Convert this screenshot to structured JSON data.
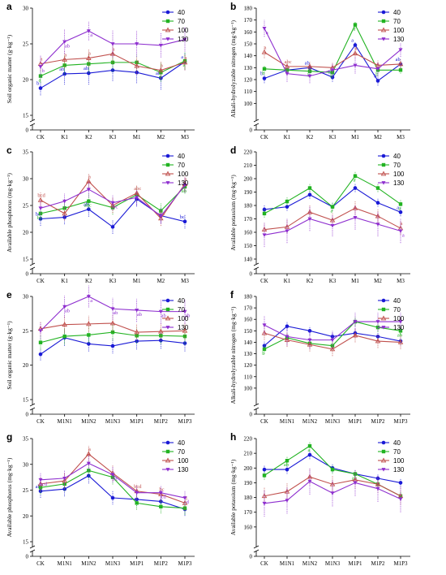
{
  "colors": {
    "40": "#1a1ad6",
    "70": "#22b322",
    "100": "#c0504d",
    "130": "#8e2fcf"
  },
  "chart_data": [
    {
      "panel": "a",
      "type": "line",
      "ylabel": "Soil organic matter (g·kg⁻¹)",
      "categories": [
        "CK",
        "K1",
        "K2",
        "K3",
        "M1",
        "M2",
        "M3"
      ],
      "ylim": [
        15,
        30
      ],
      "yticks": [
        15,
        20,
        25,
        30
      ],
      "axis_break": true,
      "series": [
        {
          "name": "40",
          "values": [
            18.8,
            20.8,
            20.9,
            21.3,
            21.0,
            20.2,
            22.5
          ],
          "err": [
            1.0,
            1.5,
            1.6,
            1.5,
            1.5,
            1.6,
            1.2
          ],
          "labels": [
            "b",
            "ab",
            "ab",
            "",
            "",
            "ab",
            "a"
          ]
        },
        {
          "name": "70",
          "values": [
            20.5,
            22.0,
            22.2,
            22.4,
            22.4,
            21.0,
            22.6
          ],
          "err": [
            1.0,
            1.3,
            1.3,
            1.3,
            1.2,
            1.3,
            1.2
          ],
          "labels": [
            "a",
            "",
            "",
            "",
            "",
            "a",
            "a"
          ]
        },
        {
          "name": "100",
          "values": [
            22.2,
            22.8,
            23.0,
            23.6,
            21.9,
            21.3,
            22.4
          ],
          "err": [
            1.0,
            1.2,
            1.2,
            1.4,
            1.2,
            1.2,
            1.1
          ],
          "labels": [
            "a",
            "a",
            "a",
            "a",
            "a",
            "a",
            "a"
          ]
        },
        {
          "name": "130",
          "values": [
            21.8,
            25.3,
            26.8,
            25.0,
            25.0,
            24.8,
            25.6
          ],
          "err": [
            1.6,
            1.7,
            1.3,
            1.9,
            1.8,
            1.7,
            1.7
          ],
          "labels": [
            "b",
            "ab",
            "a",
            "",
            "",
            "",
            ""
          ]
        }
      ]
    },
    {
      "panel": "b",
      "type": "line",
      "ylabel": "Alkali-hydrolyzable nitrogen (mg·kg⁻¹)",
      "categories": [
        "CK",
        "K1",
        "K2",
        "K3",
        "M1",
        "M2",
        "M3"
      ],
      "ylim": [
        90,
        180
      ],
      "yticks": [
        100,
        110,
        120,
        130,
        140,
        150,
        160,
        170,
        180
      ],
      "axis_break": true,
      "series": [
        {
          "name": "40",
          "values": [
            121,
            128,
            130,
            122,
            149,
            119,
            133
          ],
          "err": [
            4,
            3,
            3,
            4,
            3,
            4,
            3
          ],
          "labels": [
            "b",
            "",
            "ab",
            "b",
            "a",
            "b",
            "ab"
          ]
        },
        {
          "name": "70",
          "values": [
            129,
            128,
            127,
            126,
            166,
            128,
            128
          ],
          "err": [
            3,
            3,
            3,
            3,
            3,
            3,
            3
          ],
          "labels": [
            "b",
            "",
            "b",
            "b",
            "a",
            "b",
            ""
          ]
        },
        {
          "name": "100",
          "values": [
            143,
            131,
            131,
            130,
            142,
            132,
            133
          ],
          "err": [
            5,
            4,
            4,
            4,
            5,
            4,
            4
          ],
          "labels": [
            "a",
            "abc",
            "",
            "",
            "a",
            "",
            ""
          ]
        },
        {
          "name": "130",
          "values": [
            163,
            125,
            123,
            128,
            132,
            129,
            145
          ],
          "err": [
            7,
            7,
            6,
            6,
            7,
            6,
            6
          ],
          "labels": [
            "a",
            "",
            "",
            "",
            "",
            "",
            ""
          ]
        }
      ]
    },
    {
      "panel": "c",
      "type": "line",
      "ylabel": "Available phosphorus (mg·kg⁻¹)",
      "categories": [
        "CK",
        "K1",
        "K2",
        "K3",
        "M1",
        "M2",
        "M3"
      ],
      "ylim": [
        15,
        35
      ],
      "yticks": [
        15,
        20,
        25,
        30,
        35
      ],
      "axis_break": true,
      "series": [
        {
          "name": "40",
          "values": [
            22.5,
            22.8,
            24.3,
            21.0,
            26.2,
            23.1,
            22.0
          ],
          "err": [
            1.3,
            1.3,
            1.4,
            1.3,
            1.4,
            1.4,
            1.3
          ],
          "labels": [
            "bc",
            "",
            "ab",
            "",
            "",
            "",
            "bc"
          ]
        },
        {
          "name": "70",
          "values": [
            23.5,
            24.5,
            25.8,
            24.6,
            27.0,
            24.0,
            28.5
          ],
          "err": [
            1.3,
            1.3,
            1.4,
            1.3,
            1.4,
            1.4,
            1.3
          ],
          "labels": [
            "bc",
            "",
            "abc",
            "",
            "",
            "",
            "ab"
          ]
        },
        {
          "name": "100",
          "values": [
            26.0,
            23.5,
            29.5,
            25.0,
            27.3,
            22.6,
            29.0
          ],
          "err": [
            1.4,
            1.3,
            1.5,
            1.4,
            1.4,
            1.4,
            1.4
          ],
          "labels": [
            "bcd",
            "",
            "a",
            "",
            "abc",
            "abc",
            "a"
          ]
        },
        {
          "name": "130",
          "values": [
            24.5,
            25.8,
            28.0,
            25.5,
            26.5,
            23.0,
            28.8
          ],
          "err": [
            1.4,
            1.4,
            1.5,
            1.4,
            1.5,
            1.4,
            1.4
          ],
          "labels": [
            "",
            "",
            "",
            "bc",
            "",
            "",
            ""
          ]
        }
      ]
    },
    {
      "panel": "d",
      "type": "line",
      "ylabel": "Available potassium (mg·kg⁻¹)",
      "categories": [
        "CK",
        "K1",
        "K2",
        "K3",
        "M1",
        "M2",
        "M3"
      ],
      "ylim": [
        140,
        220
      ],
      "yticks": [
        140,
        150,
        160,
        170,
        180,
        190,
        200,
        210,
        220
      ],
      "axis_break": true,
      "series": [
        {
          "name": "40",
          "values": [
            177,
            179,
            188,
            179,
            193,
            182,
            175
          ],
          "err": [
            3,
            3,
            3,
            3,
            3,
            3,
            3
          ],
          "labels": [
            "",
            "",
            "",
            "",
            "",
            "",
            "a"
          ]
        },
        {
          "name": "70",
          "values": [
            174,
            183,
            193,
            179,
            202,
            193,
            181
          ],
          "err": [
            3,
            3,
            3,
            3,
            3,
            3,
            3
          ],
          "labels": [
            "",
            "",
            "",
            "a",
            "a",
            "",
            "a"
          ]
        },
        {
          "name": "100",
          "values": [
            162,
            164,
            175,
            169,
            178,
            172,
            163
          ],
          "err": [
            5,
            5,
            5,
            5,
            5,
            5,
            5
          ],
          "labels": [
            "",
            "",
            "",
            "",
            "",
            "",
            "a"
          ]
        },
        {
          "name": "130",
          "values": [
            158,
            161,
            170,
            165,
            171,
            166,
            161
          ],
          "err": [
            9,
            9,
            9,
            8,
            9,
            9,
            9
          ],
          "labels": [
            "",
            "",
            "",
            "",
            "",
            "",
            "a"
          ]
        }
      ]
    },
    {
      "panel": "e",
      "type": "line",
      "ylabel": "Soil organic matter (g·kg⁻¹)",
      "categories": [
        "CK",
        "M1N1",
        "M1N2",
        "M1N3",
        "M1P1",
        "M1P2",
        "M1P3"
      ],
      "ylim": [
        15,
        30
      ],
      "yticks": [
        15,
        20,
        25,
        30
      ],
      "axis_break": true,
      "series": [
        {
          "name": "40",
          "values": [
            21.6,
            24.0,
            23.1,
            22.8,
            23.5,
            23.6,
            23.2
          ],
          "err": [
            0.9,
            1.2,
            1.1,
            1.1,
            1.2,
            1.2,
            1.2
          ],
          "labels": [
            "",
            "",
            "",
            "",
            "",
            "",
            ""
          ]
        },
        {
          "name": "70",
          "values": [
            23.3,
            24.2,
            24.4,
            24.8,
            24.3,
            24.3,
            24.2
          ],
          "err": [
            1.0,
            1.2,
            1.2,
            1.2,
            1.2,
            1.2,
            1.2
          ],
          "labels": [
            "",
            "",
            "",
            "",
            "",
            "",
            ""
          ]
        },
        {
          "name": "100",
          "values": [
            25.3,
            25.9,
            26.0,
            26.1,
            24.8,
            24.9,
            25.0
          ],
          "err": [
            1.0,
            1.2,
            1.2,
            1.3,
            1.2,
            1.3,
            1.3
          ],
          "labels": [
            "",
            "",
            "",
            "",
            "",
            "",
            ""
          ]
        },
        {
          "name": "130",
          "values": [
            25.0,
            28.5,
            30.0,
            28.2,
            28.0,
            27.8,
            27.8
          ],
          "err": [
            1.2,
            1.6,
            1.6,
            1.6,
            1.7,
            1.8,
            1.8
          ],
          "labels": [
            "",
            "ab",
            "a",
            "ab",
            "ab",
            "ab",
            "ab"
          ]
        }
      ]
    },
    {
      "panel": "f",
      "type": "line",
      "ylabel": "Alkali-hydrolyzable nitrogen (mg·kg⁻¹)",
      "categories": [
        "CK",
        "M1N1",
        "M1N2",
        "M1N3",
        "M1P1",
        "M1P2",
        "M1P3"
      ],
      "ylim": [
        90,
        180
      ],
      "yticks": [
        100,
        110,
        120,
        130,
        140,
        150,
        160,
        170,
        180
      ],
      "axis_break": true,
      "series": [
        {
          "name": "40",
          "values": [
            137,
            154,
            150,
            145,
            148,
            145,
            141
          ],
          "err": [
            4,
            4,
            4,
            4,
            4,
            4,
            4
          ],
          "labels": [
            "",
            "",
            "",
            "",
            "",
            "",
            ""
          ]
        },
        {
          "name": "70",
          "values": [
            134,
            144,
            139,
            137,
            158,
            153,
            150
          ],
          "err": [
            4,
            4,
            4,
            4,
            4,
            4,
            4
          ],
          "labels": [
            "b",
            "",
            "",
            "",
            "",
            "",
            "ab"
          ]
        },
        {
          "name": "100",
          "values": [
            148,
            142,
            138,
            134,
            146,
            141,
            140
          ],
          "err": [
            6,
            6,
            6,
            6,
            6,
            6,
            6
          ],
          "labels": [
            "",
            "",
            "",
            "",
            "",
            "",
            ""
          ]
        },
        {
          "name": "130",
          "values": [
            155,
            145,
            142,
            142,
            158,
            158,
            158
          ],
          "err": [
            8,
            8,
            8,
            8,
            8,
            8,
            8
          ],
          "labels": [
            "",
            "",
            "",
            "",
            "",
            "",
            ""
          ]
        }
      ]
    },
    {
      "panel": "g",
      "type": "line",
      "ylabel": "Available phosphorus (mg·kg⁻¹)",
      "categories": [
        "CK",
        "M1N1",
        "M1N2",
        "M1N3",
        "M1P1",
        "M1P2",
        "M1P3"
      ],
      "ylim": [
        15,
        35
      ],
      "yticks": [
        15,
        20,
        25,
        30,
        35
      ],
      "axis_break": true,
      "series": [
        {
          "name": "40",
          "values": [
            24.8,
            25.2,
            27.8,
            23.5,
            23.2,
            22.8,
            21.3
          ],
          "err": [
            1.3,
            1.4,
            1.5,
            1.3,
            1.3,
            1.3,
            1.3
          ],
          "labels": [
            "ab",
            "",
            "",
            "",
            "",
            "",
            ""
          ]
        },
        {
          "name": "70",
          "values": [
            25.5,
            26.2,
            28.8,
            27.5,
            22.5,
            21.8,
            21.5
          ],
          "err": [
            1.3,
            1.4,
            1.5,
            1.4,
            1.3,
            1.3,
            1.3
          ],
          "labels": [
            "",
            "",
            "",
            "",
            "",
            "",
            ""
          ]
        },
        {
          "name": "100",
          "values": [
            26.2,
            26.8,
            32.0,
            28.3,
            24.8,
            24.2,
            22.5
          ],
          "err": [
            1.4,
            1.5,
            1.6,
            1.5,
            1.4,
            1.4,
            1.4
          ],
          "labels": [
            "",
            "",
            "a",
            "",
            "bcd",
            "bc",
            "d"
          ]
        },
        {
          "name": "130",
          "values": [
            27.0,
            27.3,
            30.2,
            28.0,
            24.5,
            24.5,
            23.5
          ],
          "err": [
            1.4,
            1.5,
            1.6,
            1.5,
            1.4,
            1.4,
            1.4
          ],
          "labels": [
            "bcd",
            "",
            "",
            "bc",
            "",
            "cd",
            "d"
          ]
        }
      ]
    },
    {
      "panel": "h",
      "type": "line",
      "ylabel": "Available potassium (mg·kg⁻¹)",
      "categories": [
        "CK",
        "M1N1",
        "M1N2",
        "M1N3",
        "M1P1",
        "M1P2",
        "M1P3"
      ],
      "ylim": [
        150,
        220
      ],
      "yticks": [
        160,
        170,
        180,
        190,
        200,
        210,
        220
      ],
      "axis_break": true,
      "series": [
        {
          "name": "40",
          "values": [
            199,
            199,
            209,
            200,
            196,
            193,
            190
          ],
          "err": [
            3,
            3,
            3,
            3,
            3,
            3,
            3
          ],
          "labels": [
            "",
            "",
            "",
            "",
            "",
            "",
            ""
          ]
        },
        {
          "name": "70",
          "values": [
            195,
            205,
            215,
            199,
            196,
            189,
            181
          ],
          "err": [
            3,
            3,
            3,
            3,
            3,
            3,
            3
          ],
          "labels": [
            "",
            "ab",
            "a",
            "",
            "ab",
            "",
            ""
          ]
        },
        {
          "name": "100",
          "values": [
            181,
            184,
            194,
            189,
            192,
            189,
            181
          ],
          "err": [
            6,
            6,
            6,
            6,
            6,
            6,
            6
          ],
          "labels": [
            "",
            "",
            "",
            "",
            "",
            "",
            ""
          ]
        },
        {
          "name": "130",
          "values": [
            176,
            178,
            191,
            183,
            190,
            186,
            179
          ],
          "err": [
            9,
            9,
            9,
            9,
            9,
            9,
            9
          ],
          "labels": [
            "",
            "",
            "",
            "",
            "",
            "",
            ""
          ]
        }
      ]
    }
  ]
}
